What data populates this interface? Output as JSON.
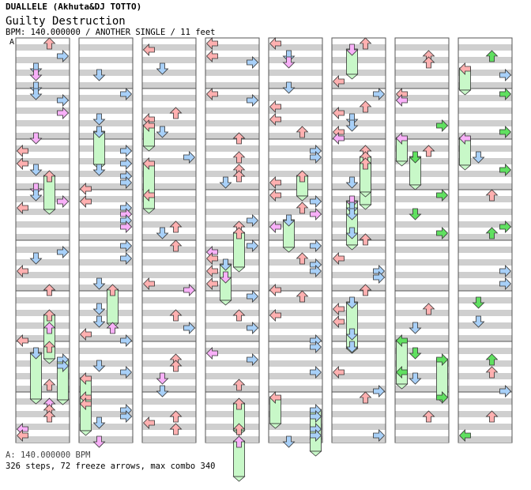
{
  "header": {
    "artist_line": "DUALLELE (Akhuta&DJ TOTTO)",
    "song_title": "Guilty Destruction",
    "chart_info": "BPM: 140.000000 / ANOTHER SINGLE / 11 feet"
  },
  "marker_label": "A",
  "footer": {
    "bpm_line": "A: 140.000000 BPM",
    "stats_line": "326 steps, 72 freeze arrows, max combo 340"
  },
  "colors": {
    "left": "#f4a6a6",
    "down": "#9ccaf4",
    "up": "#f4a6a6",
    "right": "#9ccaf4",
    "quarter_red": "#ffb0b0",
    "quarter_blue": "#a8d0f8",
    "eighth_pink": "#f8b0f8",
    "sixteenth_green": "#60e060",
    "freeze_body": "#c8f8c8",
    "band_gray": "#cfcfcf"
  },
  "chart_data": {
    "type": "table",
    "columns": 8,
    "measures_per_column": 8
  }
}
